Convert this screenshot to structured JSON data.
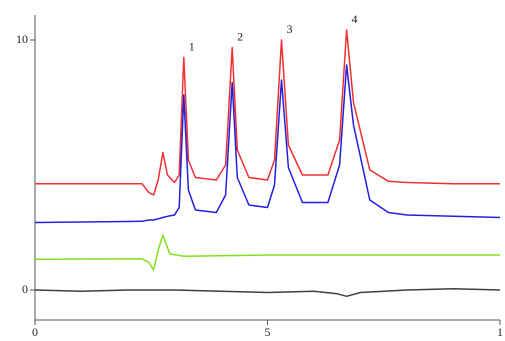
{
  "chart_data": {
    "type": "line",
    "xlim": [
      0,
      10
    ],
    "ylim": [
      -1.2,
      11
    ],
    "xticks": [
      0,
      5,
      {
        "value": 10,
        "label": "1"
      }
    ],
    "yticks": [
      0,
      10
    ],
    "series": [
      {
        "color": "#f03030",
        "x": [
          0,
          2.3,
          2.45,
          2.55,
          2.65,
          2.75,
          2.85,
          3.0,
          3.1,
          3.2,
          3.3,
          3.45,
          3.9,
          4.1,
          4.24,
          4.35,
          4.6,
          5.0,
          5.15,
          5.3,
          5.45,
          5.75,
          6.3,
          6.55,
          6.7,
          6.85,
          7.2,
          7.6,
          8,
          9,
          10
        ],
        "values": [
          4.25,
          4.25,
          3.9,
          3.8,
          4.4,
          5.5,
          4.6,
          4.3,
          4.6,
          9.3,
          5.2,
          4.5,
          4.4,
          5.0,
          9.7,
          5.6,
          4.5,
          4.4,
          5.2,
          10.0,
          5.8,
          4.6,
          4.6,
          6.0,
          10.4,
          7.5,
          4.8,
          4.35,
          4.3,
          4.25,
          4.25
        ]
      },
      {
        "color": "#2020e0",
        "x": [
          0,
          2.3,
          2.45,
          2.55,
          2.65,
          2.75,
          2.85,
          3.0,
          3.1,
          3.2,
          3.3,
          3.45,
          3.9,
          4.1,
          4.24,
          4.35,
          4.6,
          5.0,
          5.15,
          5.3,
          5.45,
          5.75,
          6.3,
          6.55,
          6.7,
          6.85,
          7.2,
          7.6,
          8,
          9,
          10
        ],
        "values": [
          2.7,
          2.75,
          2.8,
          2.8,
          2.85,
          2.9,
          2.95,
          3.0,
          3.3,
          7.8,
          4.0,
          3.2,
          3.1,
          3.8,
          8.3,
          4.5,
          3.4,
          3.3,
          4.2,
          8.4,
          4.9,
          3.5,
          3.5,
          5.0,
          9.0,
          6.6,
          3.6,
          3.1,
          3.0,
          2.95,
          2.9
        ]
      },
      {
        "color": "#80e020",
        "x": [
          0,
          2.3,
          2.45,
          2.55,
          2.65,
          2.75,
          2.9,
          3.2,
          5,
          7,
          10
        ],
        "values": [
          1.23,
          1.25,
          1.1,
          0.8,
          1.6,
          2.2,
          1.45,
          1.35,
          1.4,
          1.4,
          1.4
        ]
      },
      {
        "color": "#404040",
        "x": [
          0,
          1,
          2,
          3,
          4,
          5,
          6,
          6.5,
          6.7,
          7,
          7.5,
          8,
          9,
          10
        ],
        "values": [
          0,
          -0.05,
          0,
          0,
          -0.05,
          -0.1,
          -0.05,
          -0.15,
          -0.25,
          -0.1,
          -0.05,
          0,
          0.05,
          0
        ]
      }
    ],
    "annotations": [
      {
        "text": "1",
        "x": 3.2
      },
      {
        "text": "2",
        "x": 4.24
      },
      {
        "text": "3",
        "x": 5.3
      },
      {
        "text": "4",
        "x": 6.7
      }
    ]
  }
}
